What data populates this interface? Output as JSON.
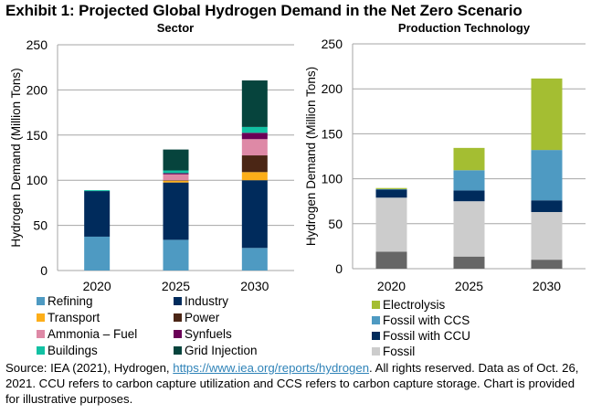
{
  "title": "Exhibit 1: Projected Global Hydrogen Demand in the Net Zero Scenario",
  "footnote": {
    "prefix": "Source: IEA (2021), Hydrogen, ",
    "link_text": "https://www.iea.org/reports/hydrogen",
    "suffix": ". All rights reserved.  Data as of Oct. 26, 2021.  CCU refers to carbon capture utilization and CCS refers to carbon capture storage. Chart is provided for illustrative purposes.",
    "link_color": "#2F83B8"
  },
  "chart_data": [
    {
      "type": "bar",
      "stacked": true,
      "title": "Sector",
      "xlabel": "",
      "ylabel": "Hydrogen Demand (Million Tons)",
      "ylim": [
        0,
        250
      ],
      "yticks": [
        0,
        50,
        100,
        150,
        200,
        250
      ],
      "grid": true,
      "legend_position": "bottom",
      "categories": [
        "2020",
        "2025",
        "2030"
      ],
      "series": [
        {
          "name": "Refining",
          "color": "#4E9AC2",
          "values": [
            37.5,
            34,
            25
          ]
        },
        {
          "name": "Industry",
          "color": "#002B5C",
          "values": [
            50.5,
            63.5,
            75
          ]
        },
        {
          "name": "Transport",
          "color": "#FDAE19",
          "values": [
            0,
            2,
            9
          ]
        },
        {
          "name": "Power",
          "color": "#4B2615",
          "values": [
            0,
            0.5,
            18.5
          ]
        },
        {
          "name": "Ammonia – Fuel",
          "color": "#DE89A6",
          "values": [
            0,
            6.5,
            18
          ]
        },
        {
          "name": "Synfuels",
          "color": "#6A0057",
          "values": [
            0,
            1.3,
            7
          ]
        },
        {
          "name": "Buildings",
          "color": "#12C1A3",
          "values": [
            1,
            3,
            6.5
          ]
        },
        {
          "name": "Grid Injection",
          "color": "#06443D",
          "values": [
            0,
            23.2,
            51.5
          ]
        }
      ]
    },
    {
      "type": "bar",
      "stacked": true,
      "title": "Production Technology",
      "xlabel": "",
      "ylabel": "Hydrogen Demand (Million Tons)",
      "ylim": [
        0,
        250
      ],
      "yticks": [
        0,
        50,
        100,
        150,
        200,
        250
      ],
      "grid": true,
      "legend_position": "bottom",
      "categories": [
        "2020",
        "2025",
        "2030"
      ],
      "series": [
        {
          "name": "",
          "color": "#666666",
          "in_legend": false,
          "values": [
            19,
            13.5,
            10
          ]
        },
        {
          "name": "Fossil",
          "color": "#CCCCCC",
          "values": [
            60,
            61.5,
            53
          ]
        },
        {
          "name": "Fossil with CCU",
          "color": "#002B5C",
          "values": [
            9,
            12,
            13
          ]
        },
        {
          "name": "Fossil with CCS",
          "color": "#4E9AC2",
          "values": [
            0.5,
            22.5,
            56
          ]
        },
        {
          "name": "Electrolysis",
          "color": "#A4BE32",
          "values": [
            1.2,
            24.8,
            79.5
          ]
        }
      ],
      "legend_order": [
        "Electrolysis",
        "Fossil with CCS",
        "Fossil with CCU",
        "Fossil"
      ]
    }
  ]
}
